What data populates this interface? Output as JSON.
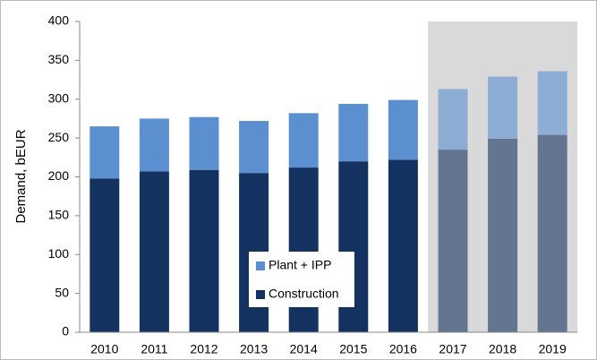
{
  "chart_data": {
    "type": "stacked_bar",
    "y_label": "Demand, bEUR",
    "categories": [
      "2010",
      "2011",
      "2012",
      "2013",
      "2014",
      "2015",
      "2016",
      "2017",
      "2018",
      "2019"
    ],
    "series": [
      {
        "name": "Construction",
        "color": "#14325f",
        "values": [
          198,
          207,
          209,
          205,
          212,
          220,
          222,
          235,
          249,
          254
        ]
      },
      {
        "name": "Plant + IPP",
        "color": "#5b8fd0",
        "values": [
          67,
          68,
          68,
          67,
          70,
          74,
          77,
          78,
          80,
          82
        ]
      }
    ],
    "ylim": [
      0,
      400
    ],
    "yticks": [
      0,
      50,
      100,
      150,
      200,
      250,
      300,
      350,
      400
    ],
    "grid": false,
    "shade_start_index": 7,
    "shade_color": "#d9d9d9"
  }
}
